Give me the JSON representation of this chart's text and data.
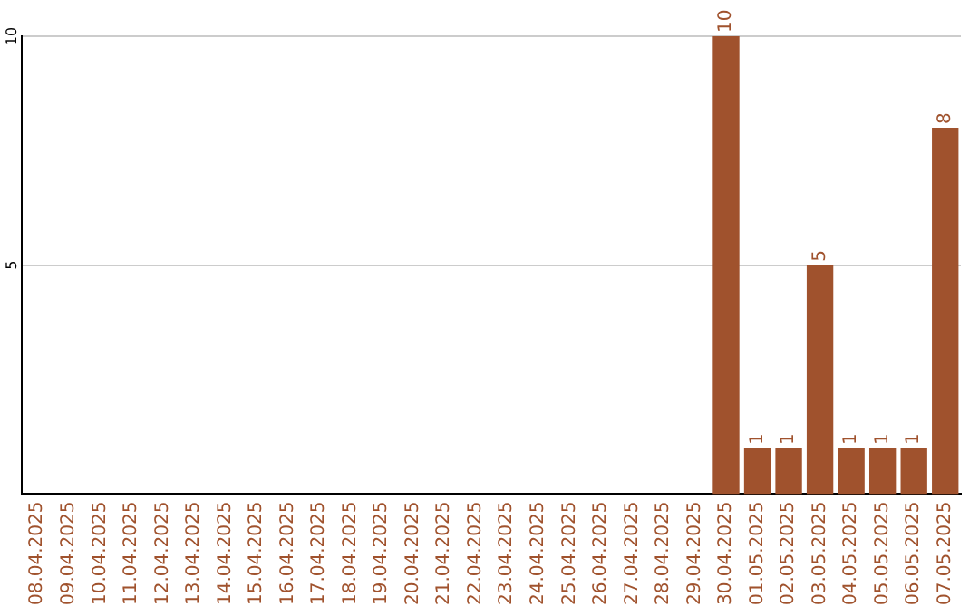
{
  "chart_data": {
    "type": "bar",
    "categories": [
      "08.04.2025",
      "09.04.2025",
      "10.04.2025",
      "11.04.2025",
      "12.04.2025",
      "13.04.2025",
      "14.04.2025",
      "15.04.2025",
      "16.04.2025",
      "17.04.2025",
      "18.04.2025",
      "19.04.2025",
      "20.04.2025",
      "21.04.2025",
      "22.04.2025",
      "23.04.2025",
      "24.04.2025",
      "25.04.2025",
      "26.04.2025",
      "27.04.2025",
      "28.04.2025",
      "29.04.2025",
      "30.04.2025",
      "01.05.2025",
      "02.05.2025",
      "03.05.2025",
      "04.05.2025",
      "05.05.2025",
      "06.05.2025",
      "07.05.2025"
    ],
    "values": [
      0,
      0,
      0,
      0,
      0,
      0,
      0,
      0,
      0,
      0,
      0,
      0,
      0,
      0,
      0,
      0,
      0,
      0,
      0,
      0,
      0,
      0,
      10,
      1,
      1,
      5,
      1,
      1,
      1,
      8
    ],
    "value_labels": [
      null,
      null,
      null,
      null,
      null,
      null,
      null,
      null,
      null,
      null,
      null,
      null,
      null,
      null,
      null,
      null,
      null,
      null,
      null,
      null,
      null,
      null,
      "10",
      "1",
      "1",
      "5",
      "1",
      "1",
      "1",
      "8"
    ],
    "color": "#a0522d",
    "ylim": [
      0,
      10
    ],
    "yticks": [
      5,
      10
    ],
    "grid": "y",
    "legend": false
  }
}
